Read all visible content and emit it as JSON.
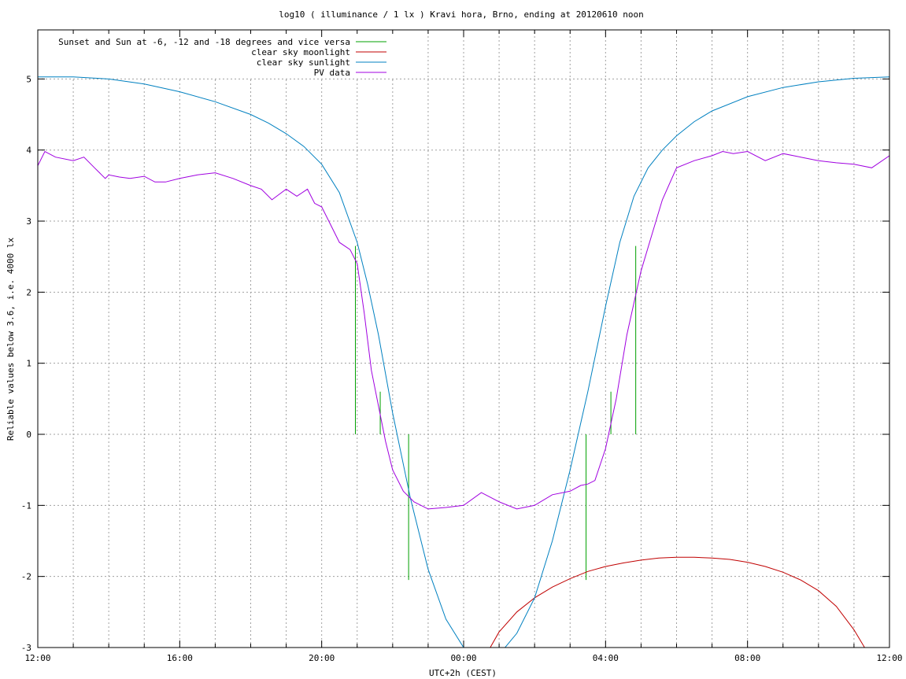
{
  "chart_data": {
    "type": "line",
    "title": "log10 ( illuminance / 1 lx ) Kravi hora, Brno, ending at 20120610 noon",
    "xlabel": "UTC+2h (CEST)",
    "ylabel": "Reliable values below 3.6, i.e. 4000 lx",
    "x_unit": "hours since 12:00 (UTC+2h)",
    "xlim": [
      0,
      24
    ],
    "ylim": [
      -3,
      5.8
    ],
    "x_ticks": [
      {
        "value": 0,
        "label": "12:00"
      },
      {
        "value": 4,
        "label": "16:00"
      },
      {
        "value": 8,
        "label": "20:00"
      },
      {
        "value": 12,
        "label": "00:00"
      },
      {
        "value": 16,
        "label": "04:00"
      },
      {
        "value": 20,
        "label": "08:00"
      },
      {
        "value": 24,
        "label": "12:00"
      }
    ],
    "y_ticks": [
      {
        "value": -3,
        "label": "-3"
      },
      {
        "value": -2,
        "label": "-2"
      },
      {
        "value": -1,
        "label": "-1"
      },
      {
        "value": 0,
        "label": "0"
      },
      {
        "value": 1,
        "label": "1"
      },
      {
        "value": 2,
        "label": "2"
      },
      {
        "value": 3,
        "label": "3"
      },
      {
        "value": 4,
        "label": "4"
      },
      {
        "value": 5,
        "label": "5"
      }
    ],
    "grid": true,
    "legend": "top-left",
    "series": [
      {
        "name": "Sunset and Sun at -6, -12 and -18 degrees and vice versa",
        "color": "#00a000",
        "kind": "impulses",
        "points": [
          {
            "x": 8.95,
            "y0": 0,
            "y1": 2.65
          },
          {
            "x": 9.65,
            "y0": 0,
            "y1": 0.6
          },
          {
            "x": 10.45,
            "y0": 0,
            "y1": -2.05
          },
          {
            "x": 15.45,
            "y0": 0,
            "y1": -2.05
          },
          {
            "x": 16.15,
            "y0": 0,
            "y1": 0.6
          },
          {
            "x": 16.85,
            "y0": 0,
            "y1": 2.65
          }
        ]
      },
      {
        "name": "clear sky moonlight",
        "color": "#c00000",
        "kind": "line",
        "x": [
          12.75,
          13.0,
          13.5,
          14.0,
          14.5,
          15.0,
          15.5,
          16.0,
          16.5,
          17.0,
          17.5,
          18.0,
          18.5,
          19.0,
          19.5,
          20.0,
          20.5,
          21.0,
          21.5,
          22.0,
          22.5,
          23.0,
          23.3
        ],
        "values": [
          -3.0,
          -2.78,
          -2.5,
          -2.3,
          -2.15,
          -2.03,
          -1.93,
          -1.86,
          -1.81,
          -1.77,
          -1.74,
          -1.73,
          -1.73,
          -1.74,
          -1.76,
          -1.8,
          -1.86,
          -1.94,
          -2.05,
          -2.2,
          -2.42,
          -2.75,
          -3.0
        ]
      },
      {
        "name": "clear sky sunlight",
        "color": "#0080c0",
        "kind": "line",
        "x": [
          0,
          1,
          2,
          3,
          4,
          5,
          6,
          6.5,
          7,
          7.5,
          8,
          8.5,
          9,
          9.3,
          9.6,
          10,
          10.5,
          11,
          11.5,
          12,
          12.5,
          13,
          13.5,
          14,
          14.5,
          15,
          15.5,
          16,
          16.4,
          16.8,
          17.2,
          17.6,
          18,
          18.5,
          19,
          20,
          21,
          22,
          23,
          24
        ],
        "values": [
          5.03,
          5.03,
          5.0,
          4.93,
          4.82,
          4.68,
          4.5,
          4.38,
          4.23,
          4.05,
          3.8,
          3.4,
          2.7,
          2.1,
          1.4,
          0.3,
          -0.9,
          -1.9,
          -2.6,
          -3.0,
          -3.25,
          -3.1,
          -2.8,
          -2.3,
          -1.5,
          -0.5,
          0.6,
          1.8,
          2.7,
          3.35,
          3.75,
          4.0,
          4.2,
          4.4,
          4.55,
          4.75,
          4.88,
          4.96,
          5.01,
          5.03
        ]
      },
      {
        "name": "PV data",
        "color": "#a000e0",
        "kind": "line",
        "x": [
          0,
          0.2,
          0.5,
          1.0,
          1.3,
          1.6,
          1.9,
          2.0,
          2.3,
          2.6,
          3.0,
          3.3,
          3.6,
          4.0,
          4.5,
          5.0,
          5.5,
          6.0,
          6.3,
          6.6,
          7.0,
          7.3,
          7.6,
          7.8,
          8.0,
          8.2,
          8.5,
          8.8,
          9.0,
          9.2,
          9.4,
          9.6,
          9.8,
          10.0,
          10.3,
          10.6,
          11.0,
          11.5,
          12.0,
          12.5,
          13.0,
          13.5,
          14.0,
          14.5,
          15.0,
          15.3,
          15.5,
          15.7,
          16.0,
          16.3,
          16.6,
          17.0,
          17.3,
          17.6,
          18.0,
          18.5,
          19.0,
          19.3,
          19.6,
          20.0,
          20.5,
          21.0,
          21.5,
          22.0,
          22.5,
          23.0,
          23.5,
          24.0
        ],
        "values": [
          3.78,
          3.98,
          3.9,
          3.85,
          3.9,
          3.75,
          3.6,
          3.65,
          3.62,
          3.6,
          3.63,
          3.55,
          3.55,
          3.6,
          3.65,
          3.68,
          3.6,
          3.5,
          3.45,
          3.3,
          3.45,
          3.35,
          3.45,
          3.25,
          3.2,
          3.0,
          2.7,
          2.6,
          2.4,
          1.7,
          0.9,
          0.4,
          -0.1,
          -0.5,
          -0.8,
          -0.95,
          -1.05,
          -1.03,
          -1.0,
          -0.82,
          -0.95,
          -1.05,
          -1.0,
          -0.85,
          -0.8,
          -0.72,
          -0.7,
          -0.65,
          -0.2,
          0.5,
          1.4,
          2.3,
          2.8,
          3.3,
          3.75,
          3.85,
          3.92,
          3.98,
          3.95,
          3.98,
          3.85,
          3.95,
          3.9,
          3.85,
          3.82,
          3.8,
          3.75,
          3.92
        ]
      }
    ]
  }
}
